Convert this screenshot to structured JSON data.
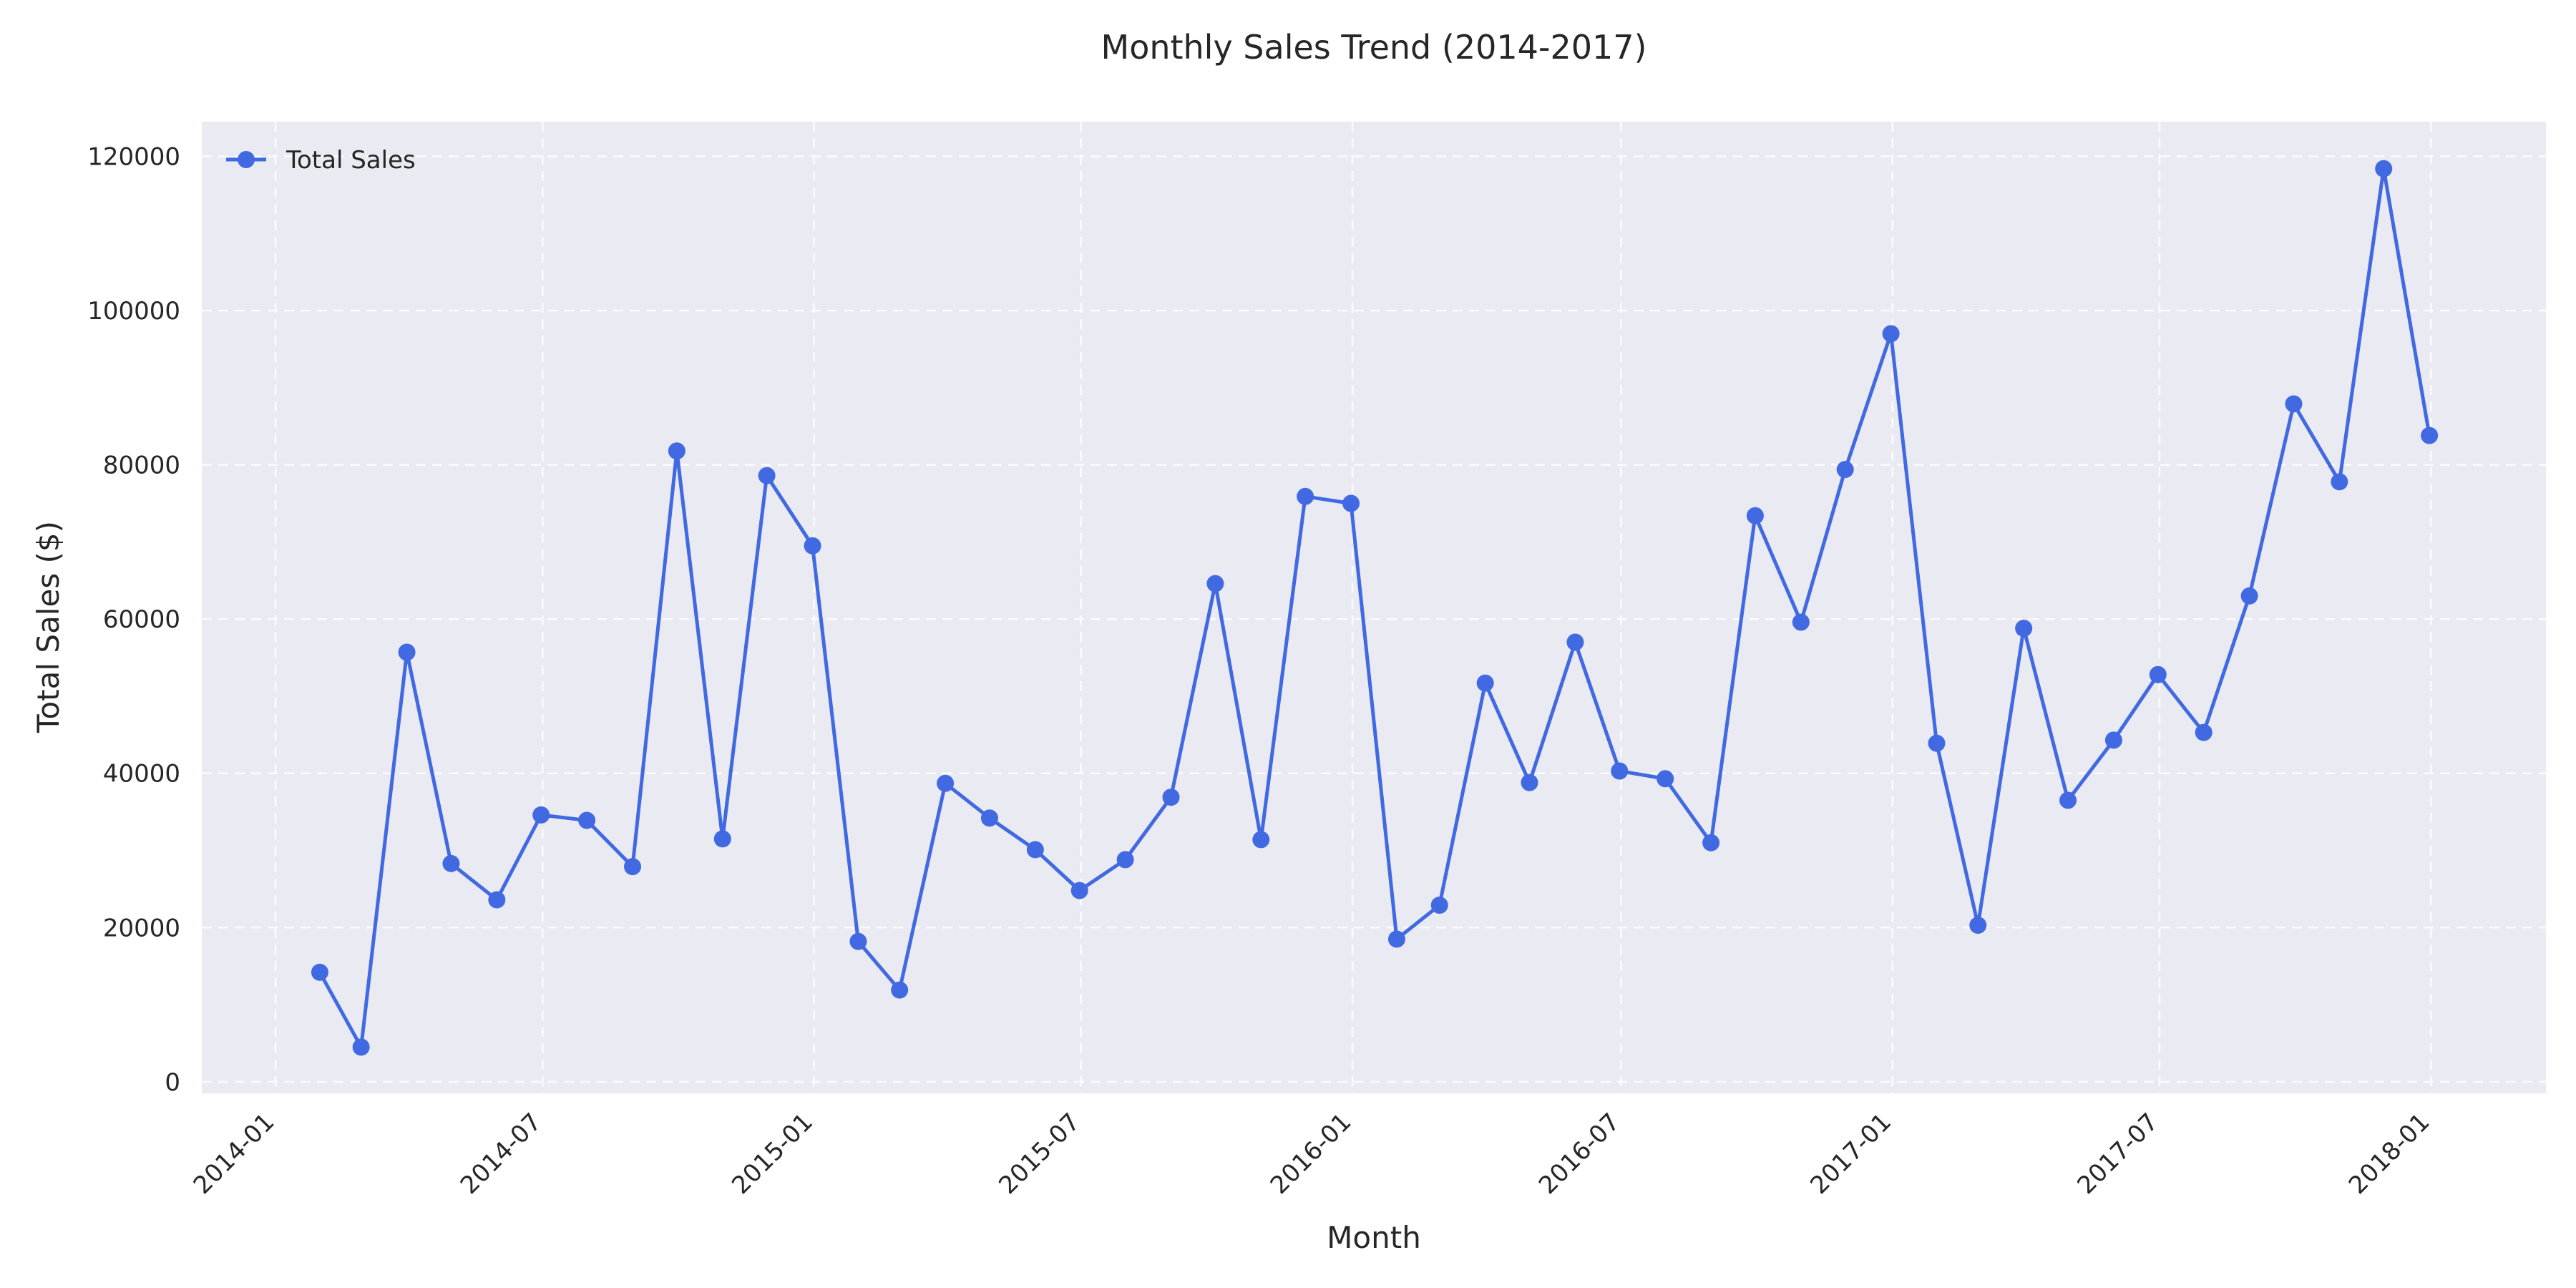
{
  "chart_data": {
    "type": "line",
    "title": "Monthly Sales Trend (2014-2017)",
    "xlabel": "Month",
    "ylabel": "Total Sales ($)",
    "xlim": [
      "2013-11-12",
      "2018-03-20"
    ],
    "ylim": [
      -1500,
      124500
    ],
    "x_ticks": [
      "2014-01",
      "2014-07",
      "2015-01",
      "2015-07",
      "2016-01",
      "2016-07",
      "2017-01",
      "2017-07",
      "2018-01"
    ],
    "y_ticks": [
      0,
      20000,
      40000,
      60000,
      80000,
      100000,
      120000
    ],
    "grid": true,
    "legend": {
      "position": "top-left"
    },
    "series": [
      {
        "name": "Total Sales",
        "color": "#4169e1",
        "x": [
          "2014-01-31",
          "2014-02-28",
          "2014-03-31",
          "2014-04-30",
          "2014-05-31",
          "2014-06-30",
          "2014-07-31",
          "2014-08-31",
          "2014-09-30",
          "2014-10-31",
          "2014-11-30",
          "2014-12-31",
          "2015-01-31",
          "2015-02-28",
          "2015-03-31",
          "2015-04-30",
          "2015-05-31",
          "2015-06-30",
          "2015-07-31",
          "2015-08-31",
          "2015-09-30",
          "2015-10-31",
          "2015-11-30",
          "2015-12-31",
          "2016-01-31",
          "2016-02-29",
          "2016-03-31",
          "2016-04-30",
          "2016-05-31",
          "2016-06-30",
          "2016-07-31",
          "2016-08-31",
          "2016-09-30",
          "2016-10-31",
          "2016-11-30",
          "2016-12-31",
          "2017-01-31",
          "2017-02-28",
          "2017-03-31",
          "2017-04-30",
          "2017-05-31",
          "2017-06-30",
          "2017-07-31",
          "2017-08-31",
          "2017-09-30",
          "2017-10-31",
          "2017-11-30",
          "2017-12-31"
        ],
        "values": [
          14200,
          4500,
          55700,
          28300,
          23600,
          34600,
          33900,
          27900,
          81800,
          31500,
          78600,
          69500,
          18200,
          11900,
          38700,
          34200,
          30100,
          24800,
          28800,
          36900,
          64600,
          31400,
          75900,
          75000,
          18500,
          22900,
          51700,
          38800,
          57000,
          40300,
          39300,
          31000,
          73400,
          59600,
          79400,
          97000,
          43900,
          20300,
          58800,
          36500,
          44300,
          52800,
          45300,
          63000,
          87900,
          77800,
          118400,
          83800
        ]
      }
    ]
  }
}
